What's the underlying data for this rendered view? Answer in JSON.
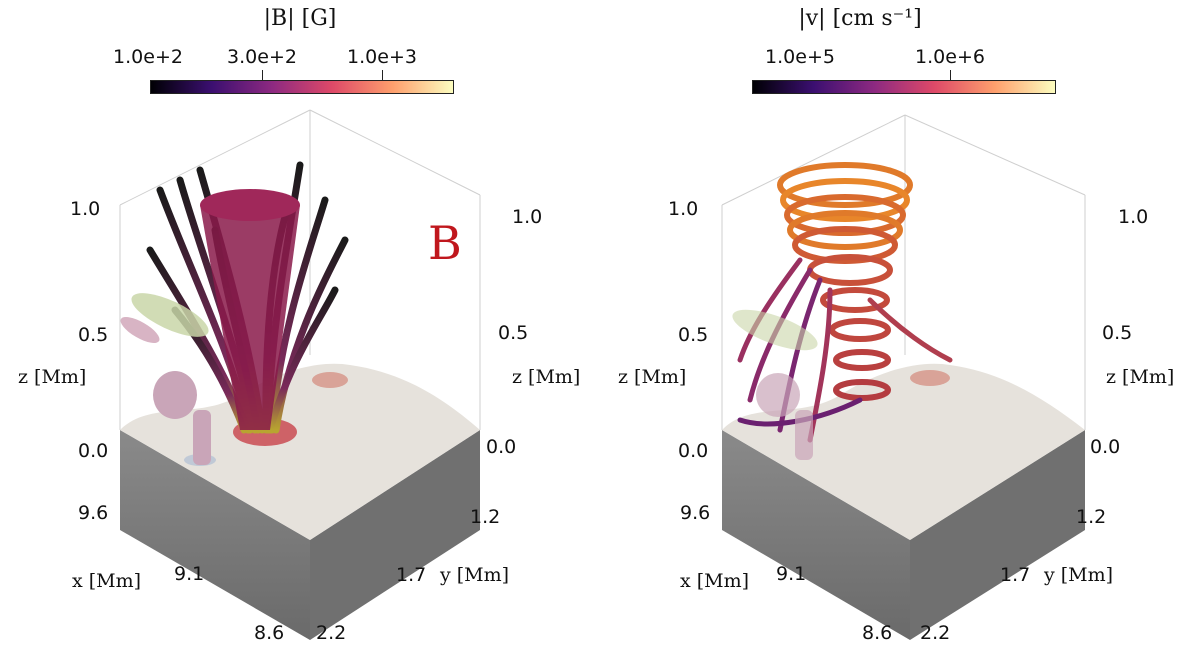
{
  "left_panel": {
    "colorbar": {
      "title": "|B|  [G]",
      "ticks": [
        "1.0e+2",
        "3.0e+2",
        "1.0e+3"
      ],
      "colormap": "inferno"
    },
    "panel_letter": "B",
    "z_ticks_left": [
      "1.0",
      "0.5",
      "0.0"
    ],
    "z_ticks_right": [
      "1.0",
      "0.5",
      "0.0"
    ],
    "z_label_left": "z  [Mm]",
    "z_label_right": "z  [Mm]",
    "x_ticks": [
      "9.6",
      "9.1",
      "8.6"
    ],
    "x_label": "x  [Mm]",
    "y_ticks": [
      "1.2",
      "1.7",
      "2.2"
    ],
    "y_label": "y  [Mm]"
  },
  "right_panel": {
    "colorbar": {
      "title": "|v|  [cm s⁻¹]",
      "ticks": [
        "1.0e+5",
        "1.0e+6"
      ],
      "colormap": "inferno"
    },
    "z_ticks_left": [
      "1.0",
      "0.5",
      "0.0"
    ],
    "z_ticks_right": [
      "1.0",
      "0.5",
      "0.0"
    ],
    "z_label_left": "z  [Mm]",
    "z_label_right": "z  [Mm]",
    "x_ticks": [
      "9.6",
      "9.1",
      "8.6"
    ],
    "x_label": "x  [Mm]",
    "y_ticks": [
      "1.2",
      "1.7",
      "2.2"
    ],
    "y_label": "y  [Mm]"
  },
  "colors": {
    "inferno": [
      "#000004",
      "#3b0f70",
      "#8c2981",
      "#de4968",
      "#fe9f6d",
      "#fcfdbf"
    ],
    "box_side": "#7a7a7a",
    "surface": "#e8e4de",
    "flux_tube": "#8a1a4a",
    "panel_letter": "#c0171d"
  }
}
